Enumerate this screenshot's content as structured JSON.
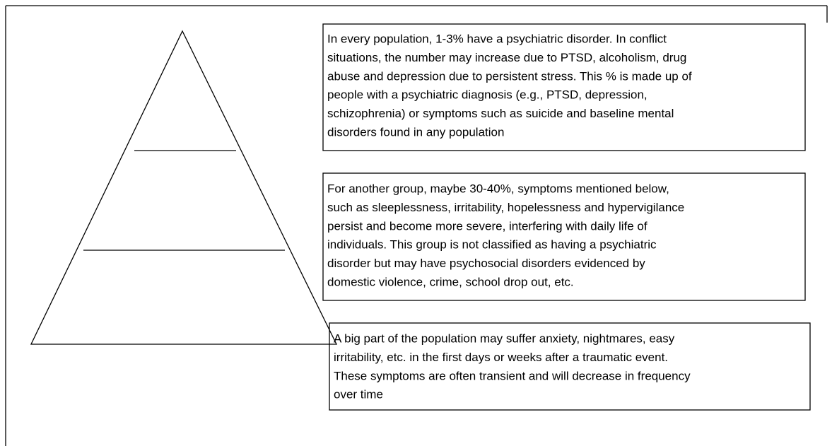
{
  "boxes": [
    {
      "lines": [
        "In every population, 1-3% have a psychiatric disorder. In conflict",
        "situations, the number may increase due to PTSD, alcoholism, drug",
        "abuse and depression due to persistent stress. This % is made up of",
        "people with a psychiatric diagnosis (e.g., PTSD, depression,",
        "schizophrenia) or symptoms such as suicide and baseline mental",
        "disorders found in any population"
      ]
    },
    {
      "lines": [
        "For another group, maybe 30-40%, symptoms mentioned below,",
        "such as sleeplessness, irritability, hopelessness and hypervigilance",
        "persist and become more severe, interfering with daily life of",
        "individuals. This group is not classified as having a psychiatric",
        "disorder but may have psychosocial disorders evidenced by",
        "domestic violence, crime, school drop out, etc."
      ]
    },
    {
      "lines": [
        "A big part of the population may suffer anxiety, nightmares, easy",
        "irritability, etc. in the first days or weeks after a traumatic event.",
        "These symptoms are often transient and will decrease in frequency",
        "over time"
      ]
    }
  ]
}
